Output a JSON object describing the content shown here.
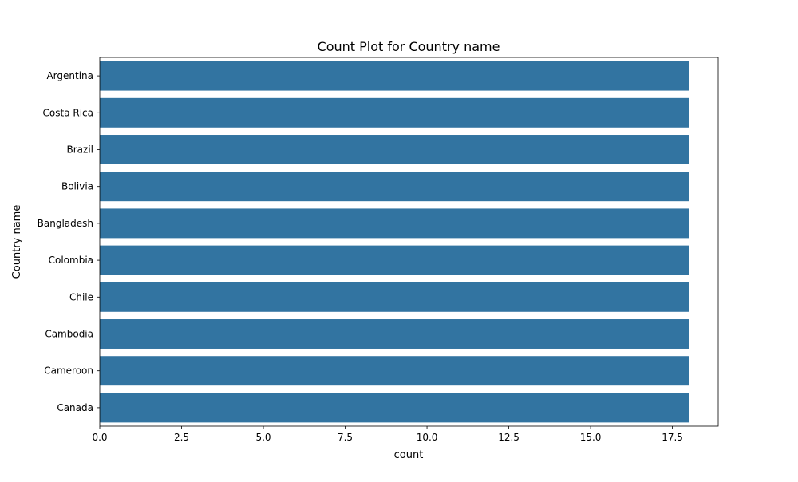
{
  "chart_data": {
    "type": "bar",
    "orientation": "horizontal",
    "title": "Count Plot for Country name",
    "xlabel": "count",
    "ylabel": "Country name",
    "categories": [
      "Argentina",
      "Costa Rica",
      "Brazil",
      "Bolivia",
      "Bangladesh",
      "Colombia",
      "Chile",
      "Cambodia",
      "Cameroon",
      "Canada"
    ],
    "values": [
      18,
      18,
      18,
      18,
      18,
      18,
      18,
      18,
      18,
      18
    ],
    "xlim": [
      0,
      18.9
    ],
    "xticks": [
      0.0,
      2.5,
      5.0,
      7.5,
      10.0,
      12.5,
      15.0,
      17.5
    ],
    "xtick_labels": [
      "0.0",
      "2.5",
      "5.0",
      "7.5",
      "10.0",
      "12.5",
      "15.0",
      "17.5"
    ],
    "bar_color": "#3274a1",
    "grid": false,
    "legend": "none"
  }
}
